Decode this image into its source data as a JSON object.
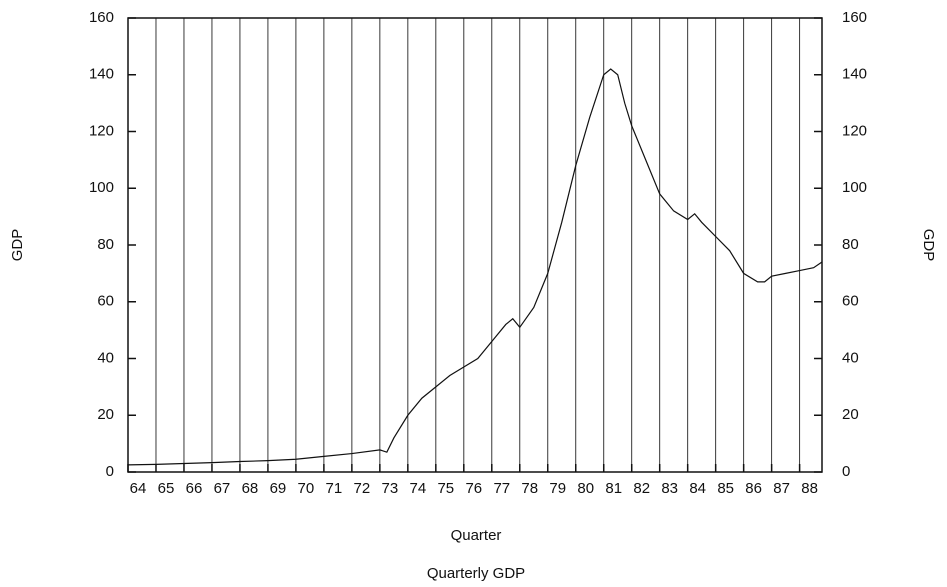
{
  "chart_data": {
    "type": "line",
    "title": "Quarterly GDP",
    "x_label": "Quarter",
    "y_label": "GDP",
    "y2_label": "GDP",
    "x": [
      64,
      65,
      66,
      67,
      68,
      69,
      70,
      71,
      72,
      73,
      73.25,
      73.5,
      74,
      74.5,
      75,
      75.5,
      76,
      76.5,
      77,
      77.5,
      77.75,
      78,
      78.5,
      79,
      79.5,
      80,
      80.5,
      81,
      81.25,
      81.5,
      81.75,
      82,
      82.5,
      83,
      83.5,
      84,
      84.25,
      84.5,
      85,
      85.5,
      86,
      86.5,
      86.75,
      87,
      87.5,
      88,
      88.5,
      88.8
    ],
    "series": [
      {
        "name": "GDP",
        "color": "#111111",
        "values": [
          2.5,
          2.7,
          3,
          3.3,
          3.7,
          4,
          4.5,
          5.5,
          6.5,
          7.8,
          7,
          12,
          20,
          26,
          30,
          34,
          37,
          40,
          46,
          52,
          54,
          51,
          58,
          70,
          88,
          108,
          125,
          140,
          142,
          140,
          130,
          122,
          110,
          98,
          92,
          89,
          91,
          88,
          83,
          78,
          70,
          67,
          67,
          69,
          70,
          71,
          72,
          74
        ]
      }
    ],
    "xlim": [
      64,
      88.8
    ],
    "xticks": [
      64,
      65,
      66,
      67,
      68,
      69,
      70,
      71,
      72,
      73,
      74,
      75,
      76,
      77,
      78,
      79,
      80,
      81,
      82,
      83,
      84,
      85,
      86,
      87,
      88
    ],
    "ylim": [
      0,
      160
    ],
    "yticks": [
      0,
      20,
      40,
      60,
      80,
      100,
      120,
      140,
      160
    ],
    "y2lim": [
      0,
      160
    ],
    "y2ticks": [
      0,
      20,
      40,
      60,
      80,
      100,
      120,
      140,
      160
    ],
    "grid": true
  }
}
